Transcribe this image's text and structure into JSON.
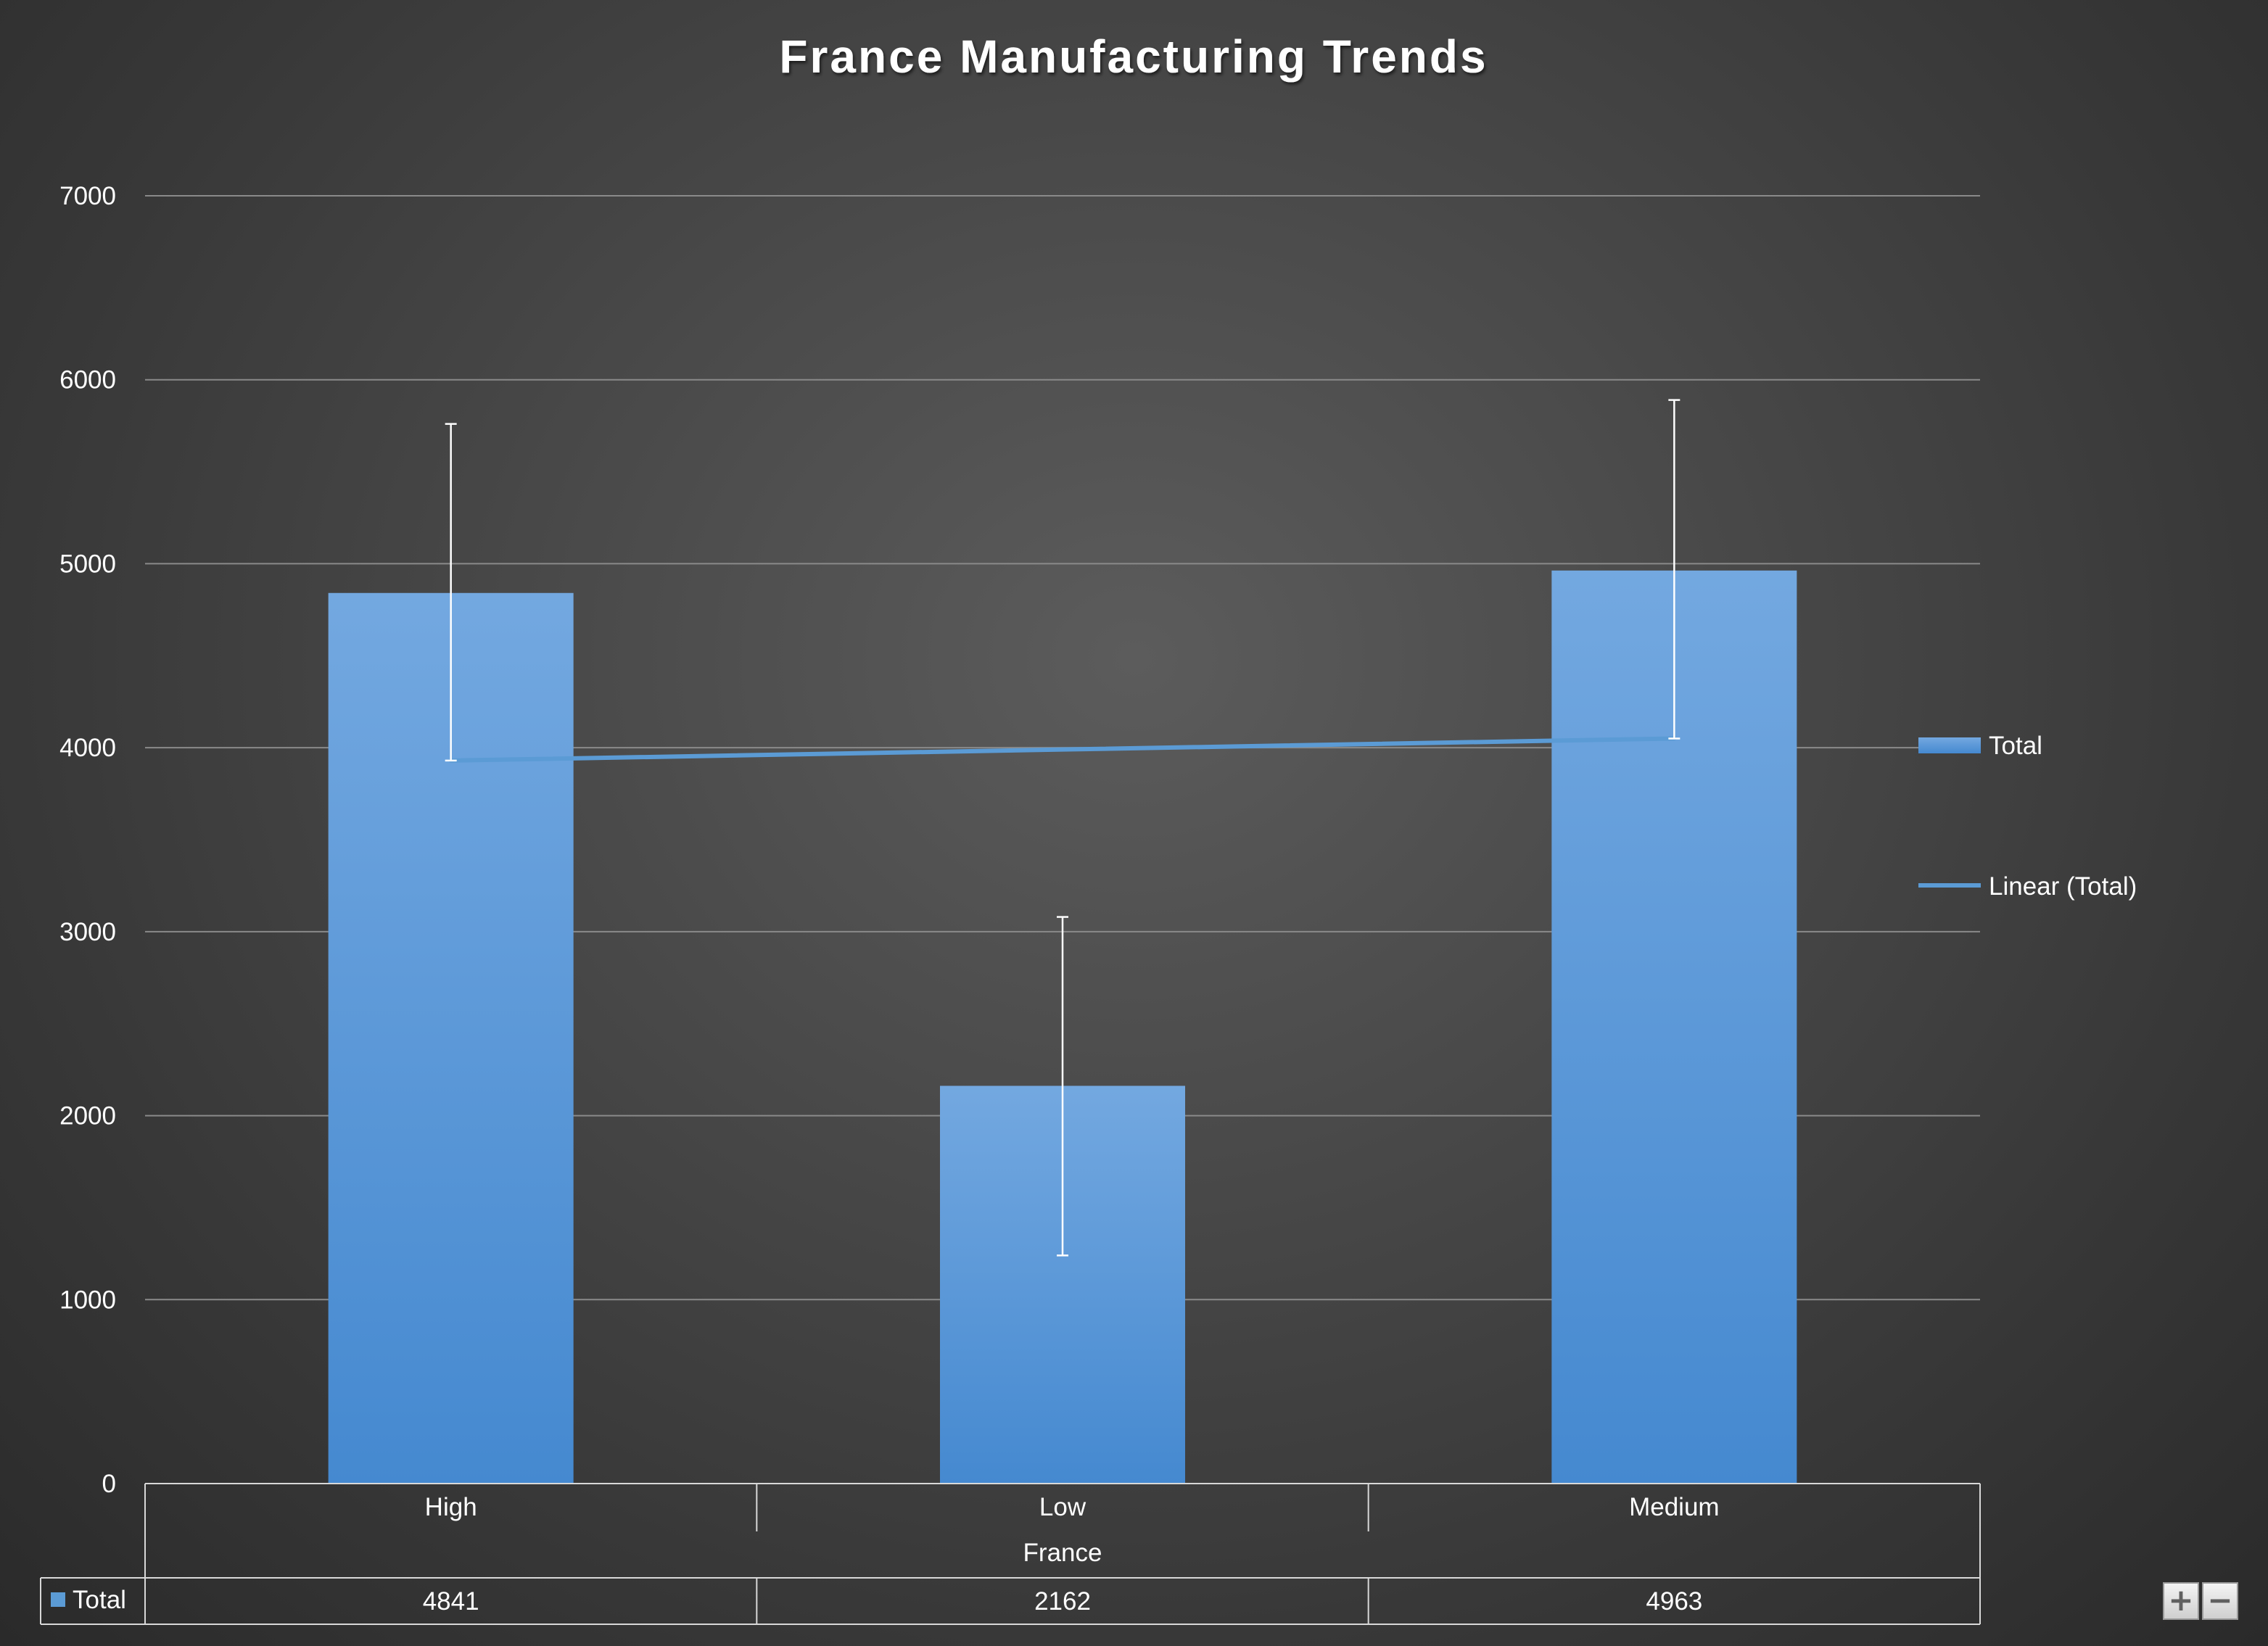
{
  "chart_data": {
    "type": "bar",
    "title": "France Manufacturing Trends",
    "group_label": "France",
    "categories": [
      "High",
      "Low",
      "Medium"
    ],
    "series": [
      {
        "name": "Total",
        "values": [
          4841,
          2162,
          4963
        ],
        "error_bars": {
          "upper": [
            5760,
            3080,
            5890
          ],
          "lower": [
            3930,
            1240,
            4050
          ]
        }
      }
    ],
    "trendline": {
      "name": "Linear (Total)",
      "type": "linear",
      "values": [
        3930,
        3990,
        4050
      ]
    },
    "ylim": [
      0,
      7000
    ],
    "yticks": [
      0,
      1000,
      2000,
      3000,
      4000,
      5000,
      6000,
      7000
    ],
    "grid": true,
    "legend": {
      "position": "right",
      "entries": [
        "Total",
        "Linear (Total)"
      ]
    },
    "data_table": {
      "row_label": "Total",
      "values": [
        "4841",
        "2162",
        "4963"
      ]
    },
    "colors": {
      "bar_top": "#73a8e0",
      "bar_bottom": "#4589d0",
      "trendline": "#5b9bd5",
      "error_bar": "#ffffff",
      "gridline": "#8a8a8a",
      "text": "#ffffff"
    }
  },
  "zoom_controls": {
    "zoom_in_label": "+",
    "zoom_out_label": "−"
  }
}
